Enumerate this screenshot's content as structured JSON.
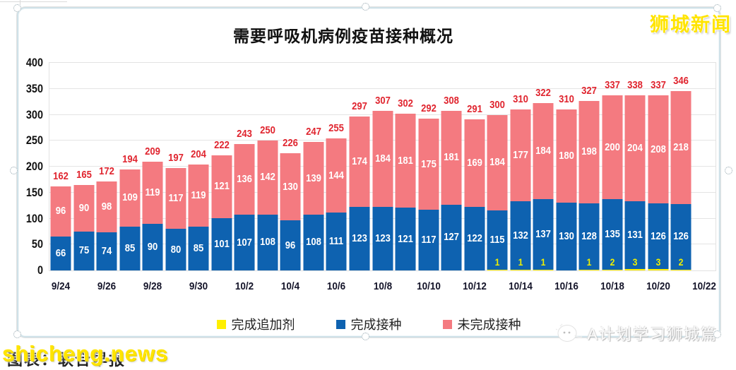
{
  "chart_data": {
    "type": "bar",
    "stacked": true,
    "title": "需要呼吸机病例疫苗接种概况",
    "categories": [
      "9/24",
      "9/25",
      "9/26",
      "9/27",
      "9/28",
      "9/29",
      "9/30",
      "10/1",
      "10/2",
      "10/3",
      "10/4",
      "10/5",
      "10/6",
      "10/7",
      "10/8",
      "10/9",
      "10/10",
      "10/11",
      "10/12",
      "10/13",
      "10/14",
      "10/15",
      "10/16",
      "10/17",
      "10/18",
      "10/19",
      "10/20",
      "10/21"
    ],
    "x_axis_tick_labels": [
      "9/24",
      "9/26",
      "9/28",
      "9/30",
      "10/2",
      "10/4",
      "10/6",
      "10/8",
      "10/10",
      "10/12",
      "10/14",
      "10/16",
      "10/18",
      "10/20",
      "10/22"
    ],
    "x_slots": 29,
    "series": [
      {
        "name": "完成追加剂",
        "color": "#ffef00",
        "value_label_color": "#eef000",
        "values": [
          0,
          0,
          0,
          0,
          0,
          0,
          0,
          0,
          0,
          0,
          0,
          0,
          0,
          0,
          0,
          0,
          0,
          0,
          0,
          1,
          1,
          1,
          0,
          1,
          2,
          3,
          3,
          2
        ]
      },
      {
        "name": "完成接种",
        "color": "#0e62b0",
        "value_label_color": "#ffffff",
        "values": [
          66,
          75,
          74,
          85,
          90,
          80,
          85,
          101,
          107,
          108,
          96,
          108,
          111,
          123,
          123,
          121,
          117,
          127,
          122,
          115,
          132,
          137,
          130,
          128,
          135,
          131,
          126,
          126
        ]
      },
      {
        "name": "未完成接种",
        "color": "#f47a80",
        "value_label_color": "#ffffff",
        "values": [
          96,
          90,
          98,
          109,
          119,
          117,
          119,
          121,
          136,
          142,
          130,
          139,
          144,
          174,
          184,
          181,
          175,
          181,
          169,
          184,
          177,
          184,
          180,
          198,
          200,
          204,
          208,
          218
        ]
      }
    ],
    "totals": [
      162,
      165,
      172,
      194,
      209,
      197,
      204,
      222,
      243,
      250,
      226,
      247,
      255,
      297,
      307,
      302,
      292,
      308,
      291,
      300,
      310,
      322,
      310,
      327,
      337,
      338,
      337,
      346
    ],
    "totals_color": "#e0252f",
    "ylim": [
      0,
      400
    ],
    "yticks": [
      0,
      50,
      100,
      150,
      200,
      250,
      300,
      350,
      400
    ],
    "grid": true,
    "grid_color": "#e4e4e4",
    "legend_position": "bottom"
  },
  "watermarks": {
    "top_right": "狮城新闻",
    "bottom_left_site": "shicheng.news",
    "bottom_left_caption": "图表：联合早报",
    "bottom_right": "A计划学习狮城篇"
  }
}
